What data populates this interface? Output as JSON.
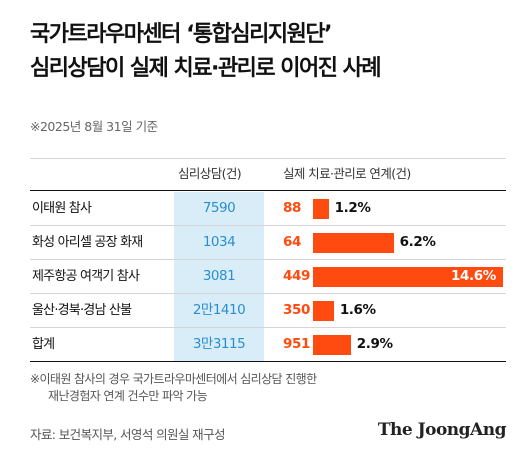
{
  "title": {
    "line1": "국가트라우마센터 ‘통합심리지원단’",
    "line2": "심리상담이 실제 치료·관리로 이어진 사례"
  },
  "date_note": "※2025년 8월 31일 기준",
  "footnote": {
    "line1": "※이태원 참사의 경우 국가트라우마센터에서 심리상담 진행한",
    "line2": "재난경험자 연계 건수만 파악 가능"
  },
  "source": "자료: 보건복지부, 서영석 의원실 재구성",
  "brand": "The JoongAng",
  "colors": {
    "accent": "#ff4a10",
    "count_text": "#2a8fd0",
    "count_bg": "#d9edf8"
  },
  "chart_data": {
    "type": "table",
    "columns": [
      "",
      "심리상담(건)",
      "실제 치료·관리로 연계(건)"
    ],
    "rows": [
      {
        "name": "이태원 참사",
        "counseling": 7590,
        "counseling_label": "7590",
        "linked": 88,
        "linked_label": "88",
        "rate": 1.2,
        "rate_label": "1.2%"
      },
      {
        "name": "화성 아리셀 공장 화재",
        "counseling": 1034,
        "counseling_label": "1034",
        "linked": 64,
        "linked_label": "64",
        "rate": 6.2,
        "rate_label": "6.2%"
      },
      {
        "name": "제주항공 여객기 참사",
        "counseling": 3081,
        "counseling_label": "3081",
        "linked": 449,
        "linked_label": "449",
        "rate": 14.6,
        "rate_label": "14.6%"
      },
      {
        "name": "울산·경북·경남 산불",
        "counseling": 21410,
        "counseling_label": "2만1410",
        "linked": 350,
        "linked_label": "350",
        "rate": 1.6,
        "rate_label": "1.6%"
      },
      {
        "name": "합계",
        "counseling": 33115,
        "counseling_label": "3만3115",
        "linked": 951,
        "linked_label": "951",
        "rate": 2.9,
        "rate_label": "2.9%"
      }
    ]
  }
}
